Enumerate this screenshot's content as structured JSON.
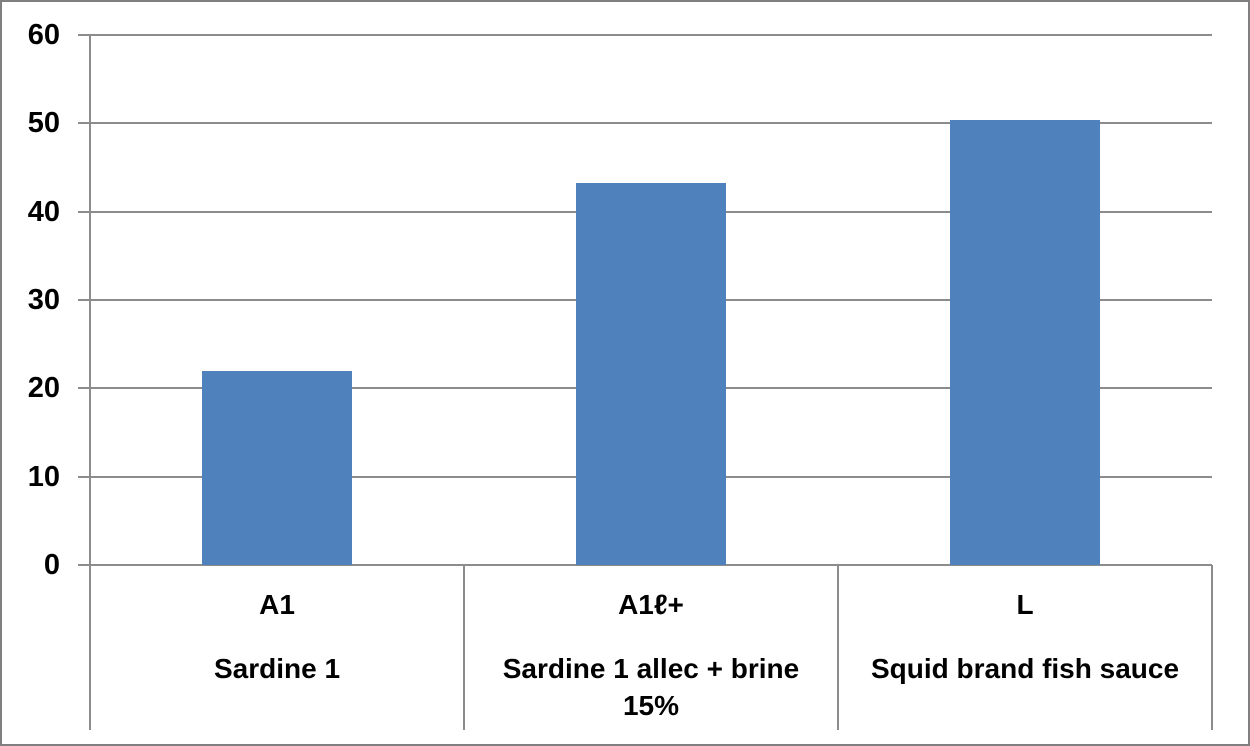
{
  "chart_data": {
    "type": "bar",
    "title": "",
    "xlabel": "",
    "ylabel": "",
    "categories": [
      "A1",
      "A1ℓ+",
      "L"
    ],
    "category_sublabels": [
      "Sardine 1",
      "Sardine 1 allec + brine 15%",
      "Squid brand fish sauce"
    ],
    "values": [
      22,
      43.3,
      50.4
    ],
    "y_ticks": [
      0,
      10,
      20,
      30,
      40,
      50,
      60
    ],
    "ylim": [
      0,
      60
    ],
    "grid": "horizontal-gridlines-on",
    "legend": "none",
    "bar_color": "#4f81bd",
    "gridline_color": "#8c8c8c",
    "axis_color": "#8c8c8c",
    "frame_border_color": "#7f7f7f",
    "text_color": "#000000",
    "background_color": "#ffffff"
  }
}
